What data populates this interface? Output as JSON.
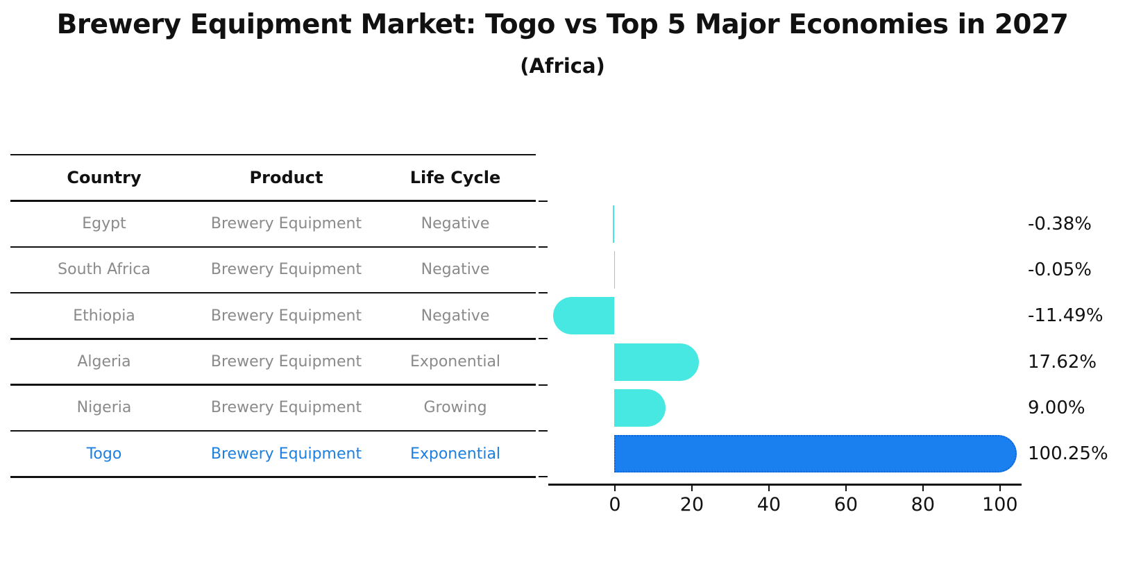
{
  "title": "Brewery Equipment Market: Togo vs Top 5 Major Economies in 2027",
  "subtitle": "(Africa)",
  "table": {
    "headers": [
      "Country",
      "Product",
      "Life Cycle"
    ],
    "rows": [
      {
        "country": "Egypt",
        "product": "Brewery Equipment",
        "life_cycle": "Negative",
        "highlight": false
      },
      {
        "country": "South Africa",
        "product": "Brewery Equipment",
        "life_cycle": "Negative",
        "highlight": false
      },
      {
        "country": "Ethiopia",
        "product": "Brewery Equipment",
        "life_cycle": "Negative",
        "highlight": false
      },
      {
        "country": "Algeria",
        "product": "Brewery Equipment",
        "life_cycle": "Exponential",
        "highlight": false
      },
      {
        "country": "Nigeria",
        "product": "Brewery Equipment",
        "life_cycle": "Growing",
        "highlight": false
      },
      {
        "country": "Togo",
        "product": "Brewery Equipment",
        "life_cycle": "Exponential",
        "highlight": true
      }
    ]
  },
  "chart_data": {
    "type": "bar",
    "orientation": "horizontal",
    "title": "Brewery Equipment Market: Togo vs Top 5 Major Economies in 2027 (Africa)",
    "categories": [
      "Egypt",
      "South Africa",
      "Ethiopia",
      "Algeria",
      "Nigeria",
      "Togo"
    ],
    "values": [
      -0.38,
      -0.05,
      -11.49,
      17.62,
      9.0,
      100.25
    ],
    "value_labels": [
      "-0.38%",
      "-0.05%",
      "-11.49%",
      "17.62%",
      "9.00%",
      "100.25%"
    ],
    "highlight_index": 5,
    "x_ticks": [
      0,
      20,
      40,
      60,
      80,
      100
    ],
    "xlim": [
      -17.1,
      105.9
    ],
    "grid": false,
    "legend": null
  },
  "colors": {
    "bar": "#48E8E2",
    "highlight_bar": "#1A80F0",
    "highlight_border": "#0E66D6",
    "highlight_text": "#1E7FE0",
    "table_text": "#8a8a8a",
    "heading_text": "#111111"
  }
}
